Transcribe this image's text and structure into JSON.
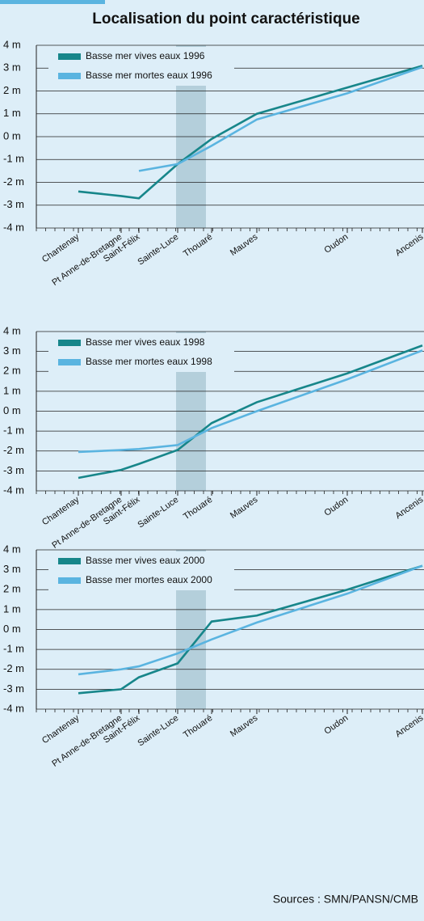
{
  "title": "Localisation du point caractéristique",
  "source": "Sources : SMN/PANSN/CMB",
  "chart_data": [
    {
      "type": "line",
      "categories": [
        "Chantenay",
        "Pt Anne-de-Bretagne",
        "Saint-Félix",
        "Sainte-Luce",
        "Thouaré",
        "Mauves",
        "Oudon",
        "Ancenis"
      ],
      "series": [
        {
          "name": "Basse mer vives eaux 1996",
          "color": "#17868a",
          "values": [
            -2.4,
            -2.6,
            -2.7,
            -1.2,
            -0.1,
            1.0,
            2.15,
            3.1
          ]
        },
        {
          "name": "Basse mer mortes eaux 1996",
          "color": "#5ab4e0",
          "values": [
            null,
            null,
            -1.5,
            -1.2,
            -0.4,
            0.75,
            1.9,
            3.05
          ]
        }
      ],
      "ylim": [
        -4,
        4
      ],
      "yticks": [
        {
          "value": 4,
          "label": "4 m"
        },
        {
          "value": 3,
          "label": "3 m"
        },
        {
          "value": 2,
          "label": "2 m"
        },
        {
          "value": 1,
          "label": "1 m"
        },
        {
          "value": 0,
          "label": "0 m"
        },
        {
          "value": -1,
          "label": "-1 m"
        },
        {
          "value": -2,
          "label": "-2 m"
        },
        {
          "value": -3,
          "label": "-3 m"
        },
        {
          "value": -4,
          "label": "-4 m"
        }
      ],
      "grid": true,
      "legend": "upper left"
    },
    {
      "type": "line",
      "categories": [
        "Chantenay",
        "Pt Anne-de-Bretagne",
        "Saint-Félix",
        "Sainte-Luce",
        "Thouaré",
        "Mauves",
        "Oudon",
        "Ancenis"
      ],
      "series": [
        {
          "name": "Basse mer vives eaux 1998",
          "color": "#17868a",
          "values": [
            -3.35,
            -2.95,
            -2.65,
            -1.95,
            -0.6,
            0.45,
            1.9,
            3.3
          ]
        },
        {
          "name": "Basse mer mortes eaux 1998",
          "color": "#5ab4e0",
          "values": [
            -2.05,
            -1.95,
            -1.9,
            -1.7,
            -0.85,
            0,
            1.6,
            3.05
          ]
        }
      ],
      "ylim": [
        -4,
        4
      ],
      "yticks": [
        {
          "value": 4,
          "label": "4 m"
        },
        {
          "value": 3,
          "label": "3 m"
        },
        {
          "value": 2,
          "label": "2 m"
        },
        {
          "value": 1,
          "label": "1 m"
        },
        {
          "value": 0,
          "label": "0 m"
        },
        {
          "value": -1,
          "label": "-1 m"
        },
        {
          "value": -2,
          "label": "-2 m"
        },
        {
          "value": -3,
          "label": "-3 m"
        },
        {
          "value": -4,
          "label": "-4 m"
        }
      ],
      "grid": true,
      "legend": "upper left"
    },
    {
      "type": "line",
      "categories": [
        "Chantenay",
        "Pt Anne-de-Bretagne",
        "Saint-Félix",
        "Sainte-Luce",
        "Thouaré",
        "Mauves",
        "Oudon",
        "Ancenis"
      ],
      "series": [
        {
          "name": "Basse mer vives eaux 2000",
          "color": "#17868a",
          "values": [
            -3.2,
            -3.0,
            -2.4,
            -1.7,
            0.4,
            0.7,
            2.0,
            3.2
          ]
        },
        {
          "name": "Basse mer mortes eaux 2000",
          "color": "#5ab4e0",
          "values": [
            -2.25,
            -2.0,
            -1.85,
            -1.2,
            -0.5,
            0.35,
            1.8,
            3.2
          ]
        }
      ],
      "ylim": [
        -4,
        4
      ],
      "yticks": [
        {
          "value": 4,
          "label": "4 m"
        },
        {
          "value": 3,
          "label": "3 m"
        },
        {
          "value": 2,
          "label": "2 m"
        },
        {
          "value": 1,
          "label": "1 m"
        },
        {
          "value": 0,
          "label": "0 m"
        },
        {
          "value": -1,
          "label": "-1 m"
        },
        {
          "value": -2,
          "label": "-2 m"
        },
        {
          "value": -3,
          "label": "-3 m"
        },
        {
          "value": -4,
          "label": "-4 m"
        }
      ],
      "grid": true,
      "legend": "upper left"
    }
  ]
}
